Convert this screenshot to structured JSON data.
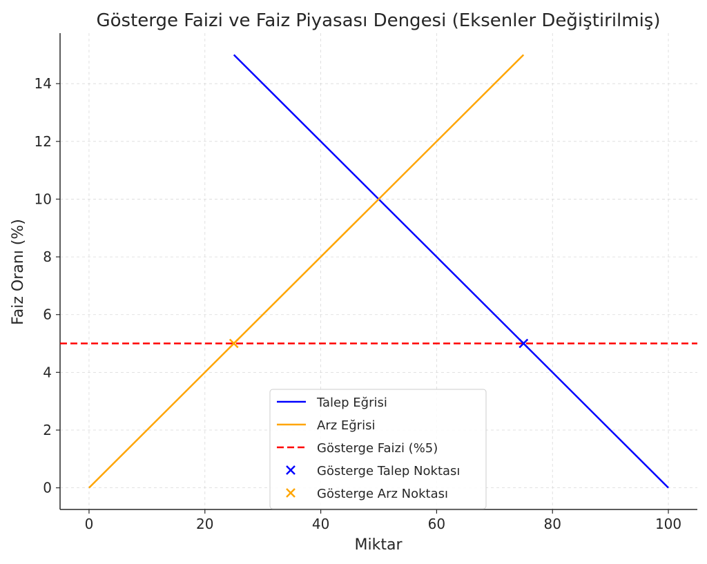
{
  "chart_data": {
    "type": "line",
    "title": "Gösterge Faizi ve Faiz Piyasası Dengesi (Eksenler Değiştirilmiş)",
    "xlabel": "Miktar",
    "ylabel": "Faiz Oranı (%)",
    "xlim": [
      -5,
      105
    ],
    "ylim": [
      -0.75,
      15.75
    ],
    "xticks": [
      0,
      20,
      40,
      60,
      80,
      100
    ],
    "yticks": [
      0,
      2,
      4,
      6,
      8,
      10,
      12,
      14
    ],
    "grid": true,
    "legend_position": "lower-center",
    "series": [
      {
        "name": "Talep Eğrisi",
        "kind": "line",
        "color": "#0000ff",
        "dash": "solid",
        "x": [
          25,
          50,
          75,
          100
        ],
        "y": [
          15,
          10,
          5,
          0
        ]
      },
      {
        "name": "Arz Eğrisi",
        "kind": "line",
        "color": "#ffa500",
        "dash": "solid",
        "x": [
          0,
          25,
          50,
          75
        ],
        "y": [
          0,
          5,
          10,
          15
        ]
      },
      {
        "name": "Gösterge Faizi (%5)",
        "kind": "hline",
        "color": "#ff0000",
        "dash": "dashed",
        "y": 5
      },
      {
        "name": "Gösterge Talep Noktası",
        "kind": "marker",
        "marker": "x",
        "color": "#0000ff",
        "x": [
          75
        ],
        "y": [
          5
        ]
      },
      {
        "name": "Gösterge Arz Noktası",
        "kind": "marker",
        "marker": "x",
        "color": "#ffa500",
        "x": [
          25
        ],
        "y": [
          5
        ]
      }
    ]
  }
}
